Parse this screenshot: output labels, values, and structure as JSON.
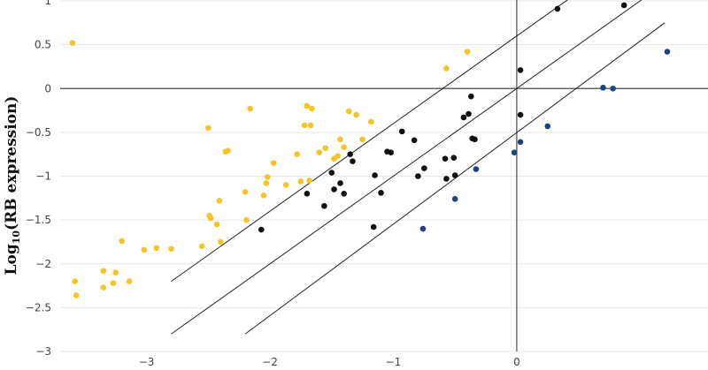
{
  "chart_data": {
    "type": "scatter",
    "ylabel_prefix": "Log",
    "ylabel_sub": "10",
    "ylabel_rest": "(RB expression)",
    "xlabel": "",
    "xlim": [
      -3.7,
      1.55
    ],
    "ylim": [
      -3,
      1
    ],
    "x_ticks": [
      -3,
      -2,
      -1,
      0
    ],
    "x_tick_labels": [
      "−3",
      "−2",
      "−1",
      "0"
    ],
    "y_ticks": [
      1,
      0.5,
      0,
      -0.5,
      -1,
      -1.5,
      -2,
      -2.5,
      -3
    ],
    "y_tick_labels": [
      "1",
      "0.5",
      "0",
      "−0.5",
      "−1",
      "−1.5",
      "−2",
      "−2.5",
      "−3"
    ],
    "grid": "horizontal",
    "legend": "none",
    "reference_lines": [
      {
        "x": [
          -2.8,
          1.0
        ],
        "y": [
          -2.2,
          1.6
        ]
      },
      {
        "x": [
          -2.8,
          1.2
        ],
        "y": [
          -2.8,
          1.2
        ]
      },
      {
        "x": [
          -2.2,
          1.2
        ],
        "y": [
          -2.8,
          0.75
        ]
      }
    ],
    "series": [
      {
        "color": "#f5c527",
        "points": [
          [
            -3.6,
            0.52
          ],
          [
            -3.58,
            -2.2
          ],
          [
            -3.57,
            -2.36
          ],
          [
            -3.35,
            -2.08
          ],
          [
            -3.35,
            -2.27
          ],
          [
            -3.27,
            -2.22
          ],
          [
            -3.25,
            -2.1
          ],
          [
            -3.2,
            -1.74
          ],
          [
            -3.14,
            -2.2
          ],
          [
            -3.02,
            -1.84
          ],
          [
            -2.92,
            -1.82
          ],
          [
            -2.8,
            -1.83
          ],
          [
            -2.55,
            -1.8
          ],
          [
            -2.5,
            -0.45
          ],
          [
            -2.49,
            -1.45
          ],
          [
            -2.48,
            -1.48
          ],
          [
            -2.43,
            -1.55
          ],
          [
            -2.41,
            -1.28
          ],
          [
            -2.4,
            -1.75
          ],
          [
            -2.36,
            -0.72
          ],
          [
            -2.34,
            -0.71
          ],
          [
            -2.2,
            -1.18
          ],
          [
            -2.19,
            -1.5
          ],
          [
            -2.16,
            -0.23
          ],
          [
            -2.05,
            -1.22
          ],
          [
            -2.03,
            -1.08
          ],
          [
            -2.02,
            -1.01
          ],
          [
            -1.97,
            -0.85
          ],
          [
            -1.87,
            -1.1
          ],
          [
            -1.78,
            -0.75
          ],
          [
            -1.75,
            -1.06
          ],
          [
            -1.72,
            -0.42
          ],
          [
            -1.7,
            -0.2
          ],
          [
            -1.68,
            -1.05
          ],
          [
            -1.67,
            -0.42
          ],
          [
            -1.66,
            -0.23
          ],
          [
            -1.6,
            -0.73
          ],
          [
            -1.55,
            -0.68
          ],
          [
            -1.48,
            -0.8
          ],
          [
            -1.45,
            -0.77
          ],
          [
            -1.43,
            -0.58
          ],
          [
            -1.4,
            -0.67
          ],
          [
            -1.36,
            -0.26
          ],
          [
            -1.3,
            -0.3
          ],
          [
            -1.25,
            -0.58
          ],
          [
            -1.18,
            -0.38
          ],
          [
            -0.57,
            0.23
          ],
          [
            -0.4,
            0.42
          ]
        ]
      },
      {
        "color": "#111111",
        "points": [
          [
            -2.07,
            -1.61
          ],
          [
            -1.7,
            -1.2
          ],
          [
            -1.56,
            -1.34
          ],
          [
            -1.5,
            -0.96
          ],
          [
            -1.48,
            -1.15
          ],
          [
            -1.43,
            -1.08
          ],
          [
            -1.4,
            -1.2
          ],
          [
            -1.35,
            -0.75
          ],
          [
            -1.33,
            -0.83
          ],
          [
            -1.16,
            -1.58
          ],
          [
            -1.15,
            -0.99
          ],
          [
            -1.1,
            -1.19
          ],
          [
            -1.05,
            -0.72
          ],
          [
            -1.02,
            -0.73
          ],
          [
            -0.93,
            -0.49
          ],
          [
            -0.83,
            -0.59
          ],
          [
            -0.8,
            -1.0
          ],
          [
            -0.75,
            -0.91
          ],
          [
            -0.58,
            -0.8
          ],
          [
            -0.57,
            -1.03
          ],
          [
            -0.5,
            -0.99
          ],
          [
            -0.51,
            -0.79
          ],
          [
            -0.43,
            -0.33
          ],
          [
            -0.39,
            -0.29
          ],
          [
            -0.37,
            -0.09
          ],
          [
            -0.36,
            -0.57
          ],
          [
            -0.34,
            -0.58
          ],
          [
            0.03,
            0.21
          ],
          [
            0.03,
            -0.3
          ],
          [
            0.33,
            0.91
          ],
          [
            0.87,
            0.95
          ]
        ]
      },
      {
        "color": "#22407e",
        "points": [
          [
            -0.76,
            -1.6
          ],
          [
            -0.5,
            -1.26
          ],
          [
            -0.33,
            -0.92
          ],
          [
            -0.02,
            -0.73
          ],
          [
            0.03,
            -0.61
          ],
          [
            0.25,
            -0.43
          ],
          [
            0.7,
            0.01
          ],
          [
            0.78,
            0.0
          ],
          [
            1.22,
            0.42
          ]
        ]
      }
    ]
  }
}
